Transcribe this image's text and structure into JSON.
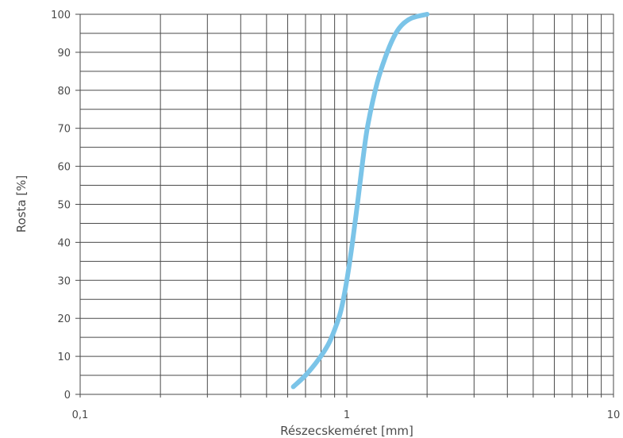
{
  "chart_data": {
    "type": "line",
    "xlabel": "Részecskeméret [mm]",
    "ylabel": "Rosta [%]",
    "x_scale": "log",
    "xlim": [
      0.1,
      10
    ],
    "ylim": [
      0,
      100
    ],
    "grid": true,
    "x_tick_labels": [
      "0,1",
      "1",
      "10"
    ],
    "x_ticks": [
      0.1,
      1,
      10
    ],
    "y_ticks": [
      0,
      10,
      20,
      30,
      40,
      50,
      60,
      70,
      80,
      90,
      100
    ],
    "y_tick_labels": [
      "0",
      "10",
      "20",
      "30",
      "40",
      "50",
      "60",
      "70",
      "80",
      "90",
      "100"
    ],
    "line_color": "#7bc4e8",
    "series": [
      {
        "x": [
          0.63,
          0.7,
          0.78,
          0.85,
          0.9,
          0.95,
          1.0,
          1.05,
          1.1,
          1.15,
          1.2,
          1.3,
          1.4,
          1.5,
          1.6,
          1.75,
          2.0
        ],
        "y": [
          2,
          5,
          9,
          13,
          17,
          22,
          30,
          40,
          51,
          62,
          71,
          82,
          89,
          94,
          97,
          99,
          100
        ]
      }
    ]
  }
}
